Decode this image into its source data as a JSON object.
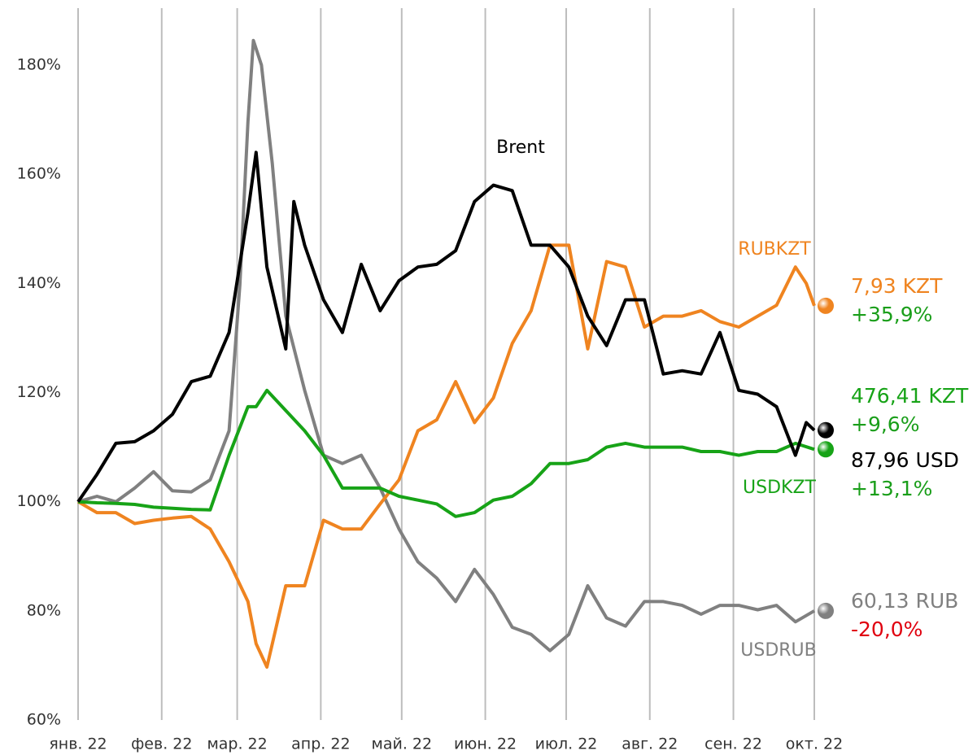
{
  "chart_data": {
    "type": "line",
    "xlim": [
      0,
      273
    ],
    "xticks": [
      {
        "value": 0,
        "label": "янв. 22"
      },
      {
        "value": 31,
        "label": "фев. 22"
      },
      {
        "value": 59,
        "label": "мар. 22"
      },
      {
        "value": 90,
        "label": "апр. 22"
      },
      {
        "value": 120,
        "label": "май. 22"
      },
      {
        "value": 151,
        "label": "июн. 22"
      },
      {
        "value": 181,
        "label": "июл. 22"
      },
      {
        "value": 212,
        "label": "авг. 22"
      },
      {
        "value": 243,
        "label": "сен. 22"
      },
      {
        "value": 273,
        "label": "окт. 22"
      }
    ],
    "ylim": [
      60,
      180
    ],
    "yticks": [
      {
        "value": 60,
        "label": "60%"
      },
      {
        "value": 80,
        "label": "80%"
      },
      {
        "value": 100,
        "label": "100%"
      },
      {
        "value": 120,
        "label": "120%"
      },
      {
        "value": 140,
        "label": "140%"
      },
      {
        "value": 160,
        "label": "160%"
      },
      {
        "value": 180,
        "label": "180%"
      }
    ],
    "grid": "x",
    "series": [
      {
        "name": "USDRUB",
        "color": "#808080",
        "price_label": "60,13 RUB",
        "change_label": "-20,0%",
        "change_color": "#e0000f",
        "x": [
          0,
          7,
          14,
          21,
          28,
          35,
          42,
          49,
          56,
          60,
          63,
          65,
          68,
          72,
          77,
          84,
          91,
          98,
          105,
          112,
          119,
          126,
          133,
          140,
          147,
          154,
          161,
          168,
          175,
          182,
          189,
          196,
          203,
          210,
          217,
          224,
          231,
          238,
          245,
          252,
          259,
          266,
          273
        ],
        "values": [
          100,
          101,
          100,
          102.5,
          105.5,
          102,
          101.8,
          104,
          113,
          139.8,
          169.6,
          184.5,
          180,
          162,
          134,
          120.4,
          108.5,
          107,
          108.5,
          102.5,
          95,
          89,
          86,
          81.7,
          87.6,
          83,
          77,
          75.7,
          72.7,
          75.7,
          84.6,
          78.7,
          77.2,
          81.7,
          81.7,
          81,
          79.4,
          81,
          81,
          80.2,
          81,
          78,
          80
        ]
      },
      {
        "name": "RUBKZT",
        "color": "#ef8420",
        "price_label": "7,93 KZT",
        "change_label": "+35,9%",
        "change_color": "#1a9e1a",
        "x": [
          0,
          7,
          14,
          21,
          28,
          35,
          42,
          49,
          56,
          63,
          66,
          70,
          77,
          84,
          91,
          98,
          105,
          112,
          119,
          126,
          133,
          140,
          147,
          154,
          161,
          168,
          175,
          182,
          189,
          196,
          203,
          210,
          217,
          224,
          231,
          238,
          245,
          252,
          259,
          266,
          270,
          273
        ],
        "values": [
          100,
          98,
          98,
          96,
          96.6,
          97,
          97.3,
          95,
          89,
          81.7,
          74,
          69.7,
          84.6,
          84.6,
          96.6,
          95,
          95,
          99.6,
          104,
          113,
          115,
          122,
          114.5,
          119,
          129,
          135,
          147,
          147,
          128,
          144,
          143,
          132,
          134,
          134,
          135,
          133,
          132,
          134,
          136,
          143,
          140,
          135.9
        ]
      },
      {
        "name": "USDKZT",
        "color": "#17a317",
        "price_label": "476,41 KZT",
        "change_label": "+9,6%",
        "change_color": "#1a9e1a",
        "x": [
          0,
          7,
          14,
          21,
          28,
          35,
          42,
          49,
          56,
          63,
          66,
          70,
          77,
          84,
          91,
          98,
          105,
          112,
          119,
          126,
          133,
          140,
          147,
          154,
          161,
          168,
          175,
          182,
          189,
          196,
          203,
          210,
          217,
          224,
          231,
          238,
          245,
          252,
          259,
          266,
          273
        ],
        "values": [
          100,
          99.8,
          99.7,
          99.5,
          99,
          98.8,
          98.6,
          98.5,
          108.5,
          117.4,
          117.4,
          120.4,
          116.7,
          113,
          108.5,
          102.5,
          102.5,
          102.5,
          101,
          100.3,
          99.6,
          97.3,
          98,
          100.3,
          101,
          103.3,
          107,
          107,
          107.7,
          110,
          110.7,
          110,
          110,
          110,
          109.2,
          109.2,
          108.5,
          109.2,
          109.2,
          110.7,
          109.6
        ]
      },
      {
        "name": "Brent",
        "color": "#000000",
        "price_label": "87,96 USD",
        "change_label": "+13,1%",
        "change_color": "#1a9e1a",
        "x": [
          0,
          7,
          14,
          21,
          28,
          35,
          42,
          49,
          56,
          63,
          66,
          70,
          77,
          80,
          84,
          91,
          98,
          105,
          112,
          119,
          126,
          133,
          140,
          147,
          154,
          161,
          168,
          175,
          182,
          189,
          196,
          203,
          210,
          217,
          224,
          231,
          238,
          245,
          252,
          259,
          266,
          270,
          273
        ],
        "values": [
          100,
          105,
          110.7,
          111,
          113,
          116,
          122,
          123,
          131,
          153,
          164,
          143,
          128,
          155,
          147,
          137,
          131,
          143.5,
          135,
          140.5,
          143,
          143.5,
          146,
          155,
          158,
          157,
          147,
          147,
          143,
          134,
          128.6,
          137,
          137,
          123.4,
          124,
          123.4,
          131,
          120.4,
          119.7,
          117.4,
          108.5,
          114.5,
          113.1
        ]
      }
    ]
  }
}
